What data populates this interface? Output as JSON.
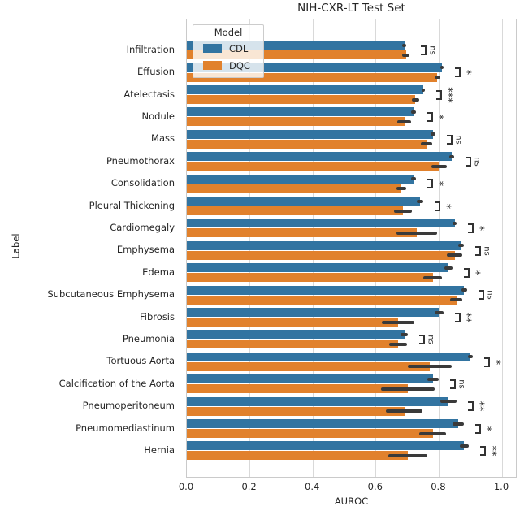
{
  "title": "NIH-CXR-LT Test Set",
  "xlabel": "AUROC",
  "ylabel": "Label",
  "legend": {
    "title": "Model",
    "entries": [
      {
        "label": "CDL",
        "color": "#3274a1"
      },
      {
        "label": "DQC",
        "color": "#e1812c"
      }
    ]
  },
  "colors": {
    "cdl": "#3274a1",
    "dqc": "#e1812c",
    "errorbar": "#3a3a3a",
    "annotation": "#333333",
    "grid": "#d9d9d9",
    "spine": "#cacaca",
    "text": "#262626"
  },
  "chart_data": {
    "type": "bar",
    "orientation": "horizontal",
    "title": "NIH-CXR-LT Test Set",
    "xlabel": "AUROC",
    "ylabel": "Label",
    "xlim": [
      0.0,
      1.05
    ],
    "grid": true,
    "legend_position": "upper left",
    "xticks": [
      {
        "label": "0.0",
        "value": 0.0
      },
      {
        "label": "0.2",
        "value": 0.2
      },
      {
        "label": "0.4",
        "value": 0.4
      },
      {
        "label": "0.6",
        "value": 0.6
      },
      {
        "label": "0.8",
        "value": 0.8
      },
      {
        "label": "1.0",
        "value": 1.0
      }
    ],
    "categories": [
      "Infiltration",
      "Effusion",
      "Atelectasis",
      "Nodule",
      "Mass",
      "Pneumothorax",
      "Consolidation",
      "Pleural Thickening",
      "Cardiomegaly",
      "Emphysema",
      "Edema",
      "Subcutaneous Emphysema",
      "Fibrosis",
      "Pneumonia",
      "Tortuous Aorta",
      "Calcification of the Aorta",
      "Pneumoperitoneum",
      "Pneumomediastinum",
      "Hernia"
    ],
    "series": [
      {
        "name": "CDL",
        "color": "#3274a1",
        "values": [
          0.69,
          0.81,
          0.75,
          0.72,
          0.78,
          0.84,
          0.72,
          0.74,
          0.85,
          0.87,
          0.83,
          0.88,
          0.8,
          0.69,
          0.9,
          0.78,
          0.83,
          0.86,
          0.88
        ],
        "errors": [
          0.006,
          0.005,
          0.006,
          0.008,
          0.008,
          0.008,
          0.008,
          0.01,
          0.006,
          0.01,
          0.012,
          0.008,
          0.015,
          0.012,
          0.008,
          0.018,
          0.025,
          0.018,
          0.015
        ]
      },
      {
        "name": "DQC",
        "color": "#e1812c",
        "values": [
          0.695,
          0.795,
          0.725,
          0.69,
          0.76,
          0.8,
          0.68,
          0.685,
          0.73,
          0.85,
          0.78,
          0.855,
          0.67,
          0.67,
          0.77,
          0.7,
          0.69,
          0.78,
          0.7
        ],
        "errors": [
          0.012,
          0.008,
          0.012,
          0.022,
          0.018,
          0.025,
          0.015,
          0.028,
          0.065,
          0.025,
          0.03,
          0.02,
          0.052,
          0.028,
          0.07,
          0.085,
          0.058,
          0.042,
          0.062
        ]
      }
    ],
    "significance": [
      "ns",
      "*",
      "***",
      "*",
      "ns",
      "ns",
      "*",
      "*",
      "*",
      "ns",
      "*",
      "ns",
      "**",
      "ns",
      "*",
      "ns",
      "**",
      "*",
      "**"
    ]
  }
}
